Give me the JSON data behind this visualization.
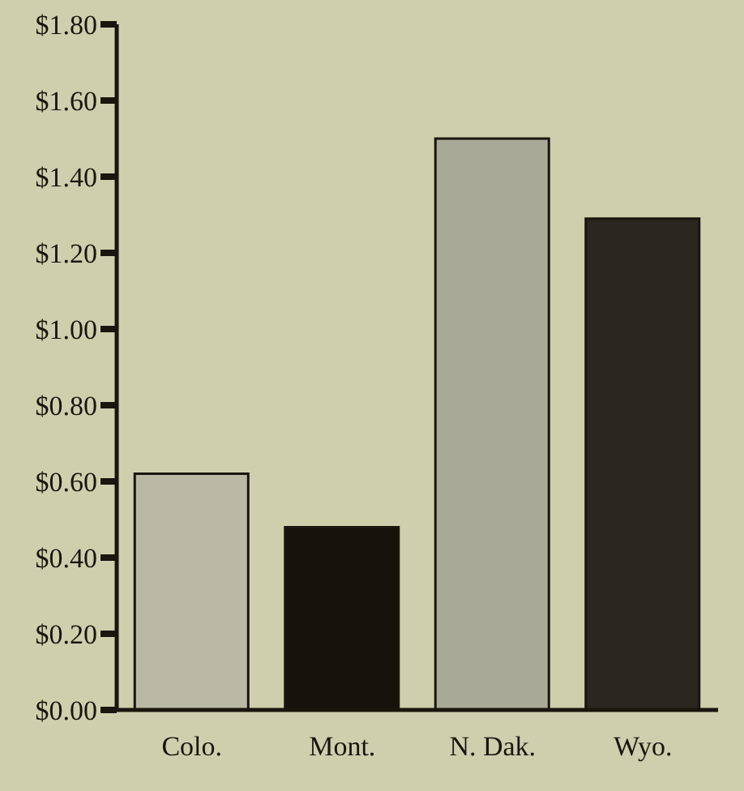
{
  "chart_data": {
    "type": "bar",
    "categories": [
      "Colo.",
      "Mont.",
      "N. Dak.",
      "Wyo."
    ],
    "values": [
      0.62,
      0.48,
      1.5,
      1.29
    ],
    "colors": [
      "#b9b9a6",
      "#17120b",
      "#a9a997",
      "#2b2720"
    ],
    "ylim": [
      0,
      1.8
    ],
    "yticks": [
      {
        "value": 0,
        "label": "$0.00"
      },
      {
        "value": 0.2,
        "label": "$0.20"
      },
      {
        "value": 0.4,
        "label": "$0.40"
      },
      {
        "value": 0.6,
        "label": "$0.60"
      },
      {
        "value": 0.8,
        "label": "$0.80"
      },
      {
        "value": 1,
        "label": "$1.00"
      },
      {
        "value": 1.2,
        "label": "$1.20"
      },
      {
        "value": 1.4,
        "label": "$1.40"
      },
      {
        "value": 1.6,
        "label": "$1.60"
      },
      {
        "value": 1.8,
        "label": "$1.80"
      }
    ],
    "grid": false
  }
}
